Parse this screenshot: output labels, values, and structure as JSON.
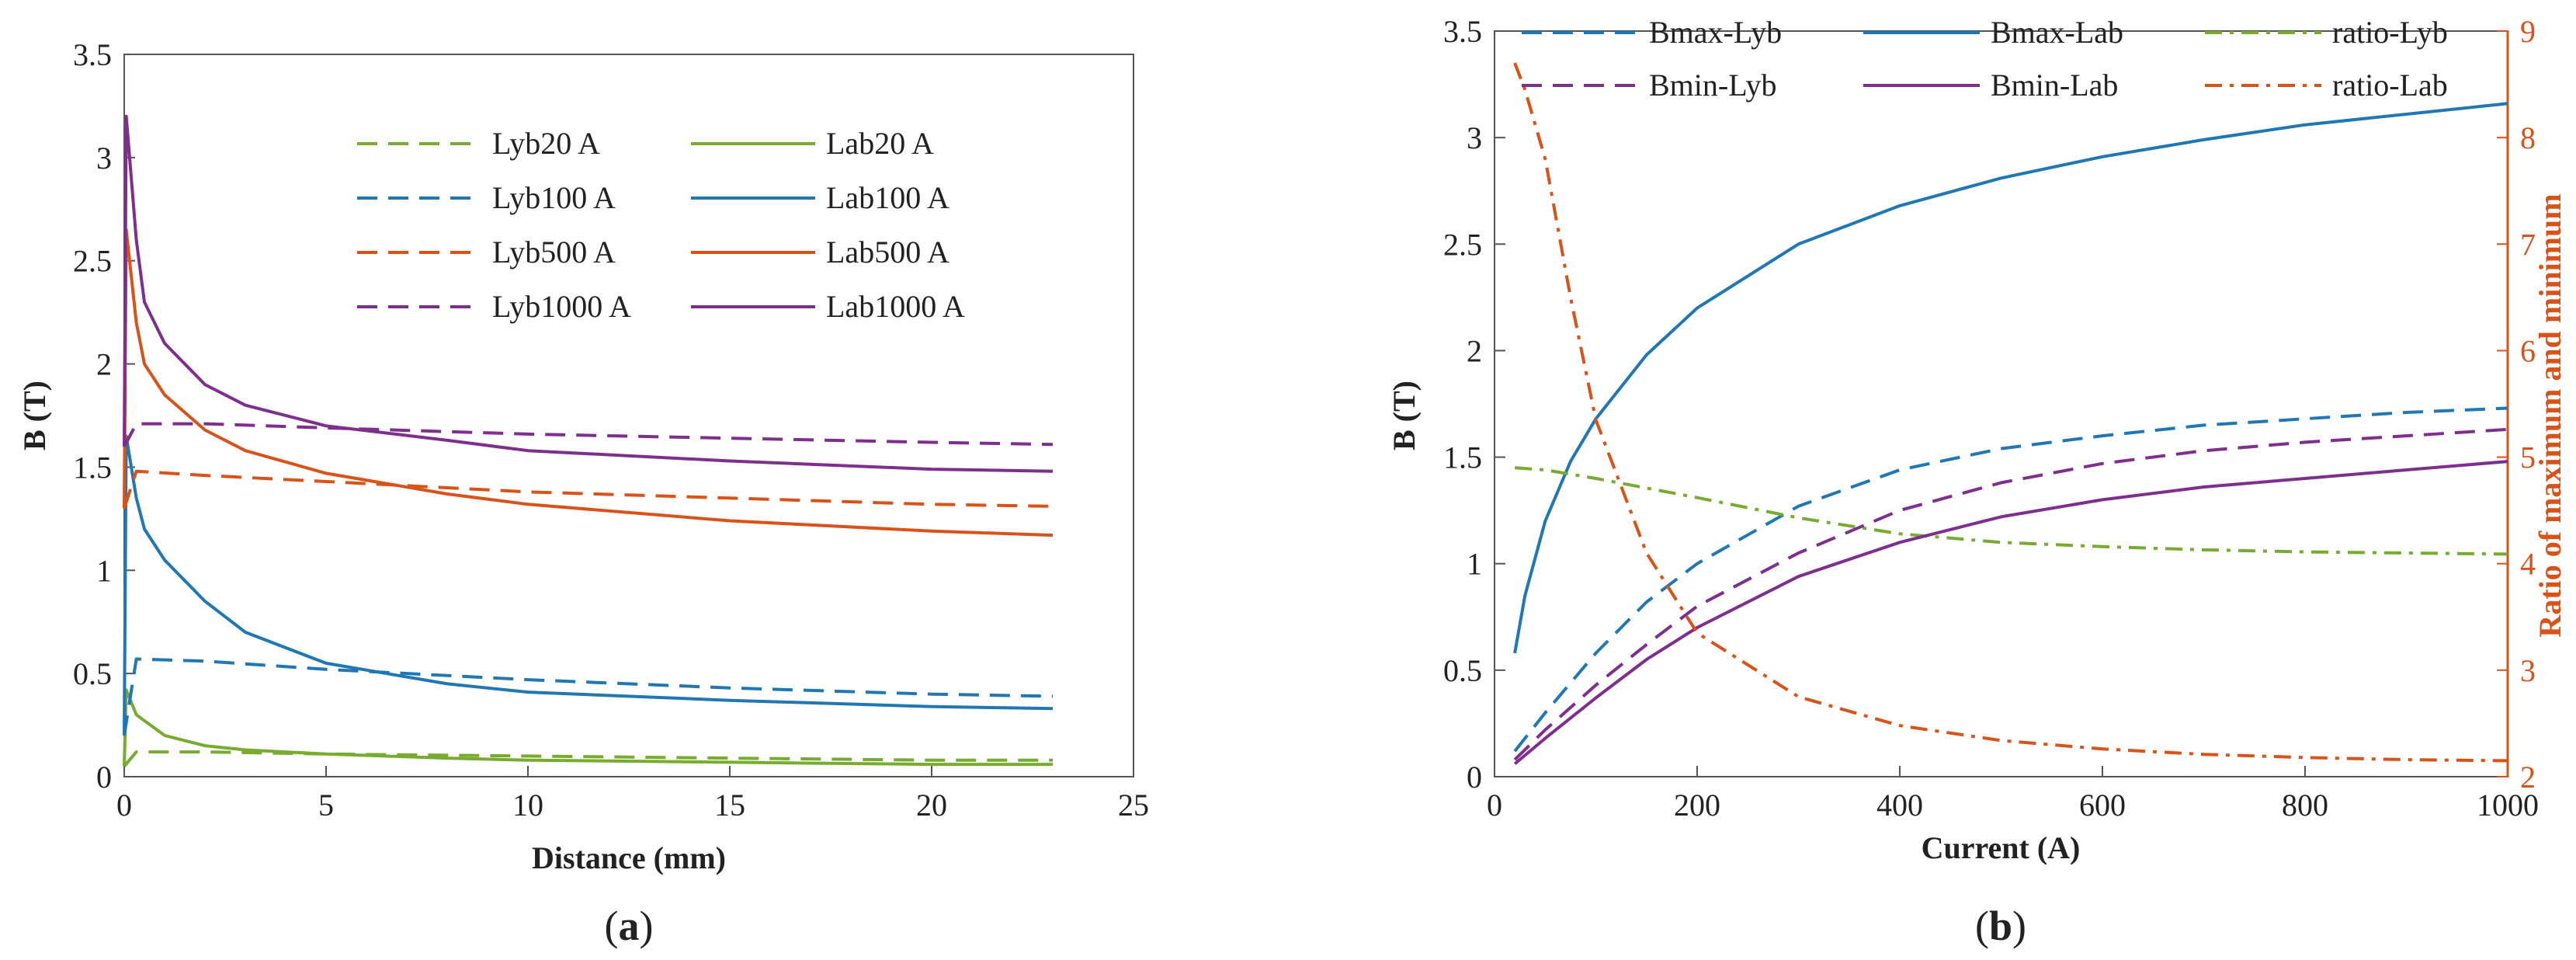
{
  "figure": {
    "panel_a_label": {
      "open": "(",
      "letter": "a",
      "close": ")"
    },
    "panel_b_label": {
      "open": "(",
      "letter": "b",
      "close": ")"
    }
  },
  "chart_data": [
    {
      "type": "line",
      "panel": "a",
      "xlabel": "Distance (mm)",
      "ylabel": "B (T)",
      "xlim": [
        0,
        25
      ],
      "ylim": [
        0,
        3.5
      ],
      "xticks": [
        0,
        5,
        10,
        15,
        20,
        25
      ],
      "yticks": [
        0,
        0.5,
        1,
        1.5,
        2,
        2.5,
        3,
        3.5
      ],
      "xtick_labels": [
        "0",
        "5",
        "10",
        "15",
        "20",
        "25"
      ],
      "ytick_labels": [
        "0",
        "0.5",
        "1",
        "1.5",
        "2",
        "2.5",
        "3",
        "3.5"
      ],
      "legend_position": "top-right",
      "series": [
        {
          "name": "Lyb20 A",
          "color": "#77ac30",
          "style": "dashed",
          "x": [
            0,
            0.3,
            2,
            5,
            10,
            15,
            20,
            23
          ],
          "y": [
            0.05,
            0.12,
            0.12,
            0.11,
            0.1,
            0.09,
            0.08,
            0.08
          ]
        },
        {
          "name": "Lab20 A",
          "color": "#77ac30",
          "style": "solid",
          "x": [
            0,
            0.05,
            0.3,
            1,
            2,
            3,
            5,
            8,
            10,
            15,
            20,
            23
          ],
          "y": [
            0.05,
            0.42,
            0.3,
            0.2,
            0.15,
            0.13,
            0.11,
            0.09,
            0.08,
            0.07,
            0.06,
            0.06
          ]
        },
        {
          "name": "Lyb100 A",
          "color": "#1f77b4",
          "style": "dashed",
          "x": [
            0,
            0.3,
            2,
            5,
            10,
            15,
            20,
            23
          ],
          "y": [
            0.2,
            0.57,
            0.56,
            0.52,
            0.47,
            0.43,
            0.4,
            0.39
          ]
        },
        {
          "name": "Lab100 A",
          "color": "#1f77b4",
          "style": "solid",
          "x": [
            0,
            0.05,
            0.3,
            0.5,
            1,
            2,
            3,
            5,
            8,
            10,
            15,
            20,
            23
          ],
          "y": [
            0.2,
            1.65,
            1.35,
            1.2,
            1.05,
            0.85,
            0.7,
            0.55,
            0.45,
            0.41,
            0.37,
            0.34,
            0.33
          ]
        },
        {
          "name": "Lyb500 A",
          "color": "#d95319",
          "style": "dashed",
          "x": [
            0,
            0.3,
            2,
            5,
            10,
            15,
            20,
            23
          ],
          "y": [
            1.3,
            1.48,
            1.46,
            1.43,
            1.38,
            1.35,
            1.32,
            1.31
          ]
        },
        {
          "name": "Lab500 A",
          "color": "#d95319",
          "style": "solid",
          "x": [
            0,
            0.05,
            0.3,
            0.5,
            1,
            2,
            3,
            5,
            8,
            10,
            15,
            20,
            23
          ],
          "y": [
            1.3,
            2.65,
            2.2,
            2.0,
            1.85,
            1.68,
            1.58,
            1.47,
            1.37,
            1.32,
            1.24,
            1.19,
            1.17
          ]
        },
        {
          "name": "Lyb1000 A",
          "color": "#7e2f8e",
          "style": "dashed",
          "x": [
            0,
            0.3,
            2,
            5,
            10,
            15,
            20,
            23
          ],
          "y": [
            1.6,
            1.71,
            1.71,
            1.69,
            1.66,
            1.64,
            1.62,
            1.61
          ]
        },
        {
          "name": "Lab1000 A",
          "color": "#7e2f8e",
          "style": "solid",
          "x": [
            0,
            0.05,
            0.3,
            0.5,
            1,
            2,
            3,
            5,
            8,
            10,
            15,
            20,
            23
          ],
          "y": [
            1.6,
            3.2,
            2.6,
            2.3,
            2.1,
            1.9,
            1.8,
            1.7,
            1.63,
            1.58,
            1.53,
            1.49,
            1.48
          ]
        }
      ]
    },
    {
      "type": "line",
      "panel": "b",
      "xlabel": "Current (A)",
      "ylabel": "B (T)",
      "ylabel_right": "Ratio of maximum and minimum",
      "ylabel_right_color": "#d95319",
      "xlim": [
        0,
        1000
      ],
      "ylim": [
        0,
        3.5
      ],
      "ylim_right": [
        2,
        9
      ],
      "xticks": [
        0,
        200,
        400,
        600,
        800,
        1000
      ],
      "yticks": [
        0,
        0.5,
        1,
        1.5,
        2,
        2.5,
        3,
        3.5
      ],
      "yticks_right": [
        2,
        3,
        4,
        5,
        6,
        7,
        8,
        9
      ],
      "xtick_labels": [
        "0",
        "200",
        "400",
        "600",
        "800",
        "1000"
      ],
      "ytick_labels": [
        "0",
        "0.5",
        "1",
        "1.5",
        "2",
        "2.5",
        "3",
        "3.5"
      ],
      "ytick_right_labels": [
        "2",
        "3",
        "4",
        "5",
        "6",
        "7",
        "8",
        "9"
      ],
      "legend_position": "top",
      "series": [
        {
          "name": "Bmax-Lyb",
          "color": "#1f77b4",
          "style": "dashed",
          "axis": "left",
          "x": [
            20,
            50,
            100,
            150,
            200,
            300,
            400,
            500,
            600,
            700,
            800,
            900,
            1000
          ],
          "y": [
            0.12,
            0.3,
            0.58,
            0.82,
            1.0,
            1.27,
            1.44,
            1.54,
            1.6,
            1.65,
            1.68,
            1.71,
            1.73
          ]
        },
        {
          "name": "Bmax-Lab",
          "color": "#1f77b4",
          "style": "solid",
          "axis": "left",
          "x": [
            20,
            30,
            50,
            75,
            100,
            150,
            200,
            300,
            400,
            500,
            600,
            700,
            800,
            900,
            1000
          ],
          "y": [
            0.58,
            0.85,
            1.2,
            1.48,
            1.68,
            1.98,
            2.2,
            2.5,
            2.68,
            2.81,
            2.91,
            2.99,
            3.06,
            3.11,
            3.16
          ]
        },
        {
          "name": "ratio-Lyb",
          "color": "#77ac30",
          "style": "dashdot",
          "axis": "right",
          "x": [
            20,
            50,
            100,
            200,
            300,
            400,
            500,
            600,
            700,
            800,
            900,
            1000
          ],
          "y": [
            4.9,
            4.88,
            4.8,
            4.62,
            4.43,
            4.28,
            4.2,
            4.16,
            4.13,
            4.11,
            4.1,
            4.09
          ]
        },
        {
          "name": "Bmin-Lyb",
          "color": "#7e2f8e",
          "style": "dashed",
          "axis": "left",
          "x": [
            20,
            50,
            100,
            150,
            200,
            300,
            400,
            500,
            600,
            700,
            800,
            900,
            1000
          ],
          "y": [
            0.08,
            0.22,
            0.43,
            0.62,
            0.8,
            1.05,
            1.25,
            1.38,
            1.47,
            1.53,
            1.57,
            1.6,
            1.63
          ]
        },
        {
          "name": "Bmin-Lab",
          "color": "#7e2f8e",
          "style": "solid",
          "axis": "left",
          "x": [
            20,
            50,
            100,
            150,
            200,
            300,
            400,
            500,
            600,
            700,
            800,
            900,
            1000
          ],
          "y": [
            0.06,
            0.18,
            0.37,
            0.55,
            0.7,
            0.94,
            1.1,
            1.22,
            1.3,
            1.36,
            1.4,
            1.44,
            1.48
          ]
        },
        {
          "name": "ratio-Lab",
          "color": "#d95319",
          "style": "dashdot",
          "axis": "right",
          "x": [
            20,
            30,
            50,
            75,
            100,
            150,
            200,
            300,
            400,
            500,
            600,
            700,
            800,
            900,
            1000
          ],
          "y": [
            8.7,
            8.45,
            7.8,
            6.5,
            5.35,
            4.1,
            3.35,
            2.75,
            2.48,
            2.34,
            2.26,
            2.21,
            2.18,
            2.16,
            2.15
          ]
        }
      ]
    }
  ]
}
